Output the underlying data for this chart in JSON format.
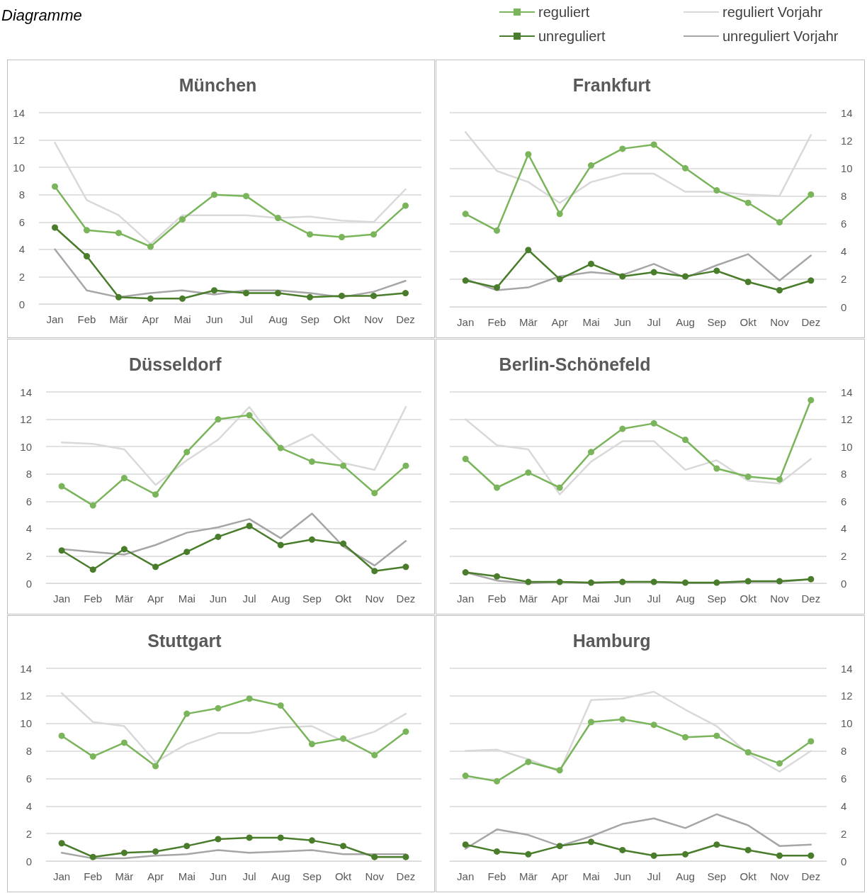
{
  "chart_data": [
    {
      "type": "line",
      "title": "München",
      "annotations": [
        "Diagramme"
      ],
      "categories": [
        "Jan",
        "Feb",
        "Mär",
        "Apr",
        "Mai",
        "Jun",
        "Jul",
        "Aug",
        "Sep",
        "Okt",
        "Nov",
        "Dez"
      ],
      "ylim": [
        0,
        14
      ],
      "yticks": [
        0,
        2,
        4,
        6,
        8,
        10,
        12,
        14
      ],
      "grid": "y",
      "legend": "top right",
      "series": [
        {
          "name": "reguliert Vorjahr",
          "color": "#d9d9d9",
          "marker": "none",
          "values": [
            11.8,
            7.6,
            6.5,
            4.4,
            6.5,
            6.5,
            6.5,
            6.3,
            6.4,
            6.1,
            6.0,
            8.4
          ]
        },
        {
          "name": "unreguliert Vorjahr",
          "color": "#a6a6a6",
          "marker": "none",
          "values": [
            4.0,
            1.0,
            0.5,
            0.8,
            1.0,
            0.7,
            1.0,
            1.0,
            0.8,
            0.5,
            0.9,
            1.7
          ]
        },
        {
          "name": "reguliert",
          "color": "#7ab55c",
          "marker": "circle",
          "values": [
            8.6,
            5.4,
            5.2,
            4.2,
            6.2,
            8.0,
            7.9,
            6.3,
            5.1,
            4.9,
            5.1,
            7.2
          ]
        },
        {
          "name": "unreguliert",
          "color": "#4a7d2b",
          "marker": "circle",
          "values": [
            5.6,
            3.5,
            0.5,
            0.4,
            0.4,
            1.0,
            0.8,
            0.8,
            0.5,
            0.6,
            0.6,
            0.8
          ]
        }
      ]
    },
    {
      "type": "line",
      "title": "Frankfurt",
      "categories": [
        "Jan",
        "Feb",
        "Mär",
        "Apr",
        "Mai",
        "Jun",
        "Jul",
        "Aug",
        "Sep",
        "Okt",
        "Nov",
        "Dez"
      ],
      "ylim": [
        0,
        14
      ],
      "yticks": [
        0,
        2,
        4,
        6,
        8,
        10,
        12,
        14
      ],
      "grid": "y",
      "series": [
        {
          "color": "#d9d9d9",
          "marker": "none",
          "values": [
            12.6,
            9.8,
            9.0,
            7.5,
            9.0,
            9.6,
            9.6,
            8.3,
            8.3,
            8.1,
            8.0,
            12.4
          ]
        },
        {
          "color": "#a6a6a6",
          "marker": "none",
          "values": [
            2.0,
            1.2,
            1.4,
            2.2,
            2.5,
            2.3,
            3.1,
            2.1,
            3.0,
            3.8,
            1.9,
            3.7
          ]
        },
        {
          "color": "#7ab55c",
          "marker": "circle",
          "values": [
            6.7,
            5.5,
            11.0,
            6.7,
            10.2,
            11.4,
            11.7,
            10.0,
            8.4,
            7.5,
            6.1,
            8.1
          ]
        },
        {
          "color": "#4a7d2b",
          "marker": "circle",
          "values": [
            1.9,
            1.4,
            4.1,
            2.0,
            3.1,
            2.2,
            2.5,
            2.2,
            2.6,
            1.8,
            1.2,
            1.9
          ]
        }
      ]
    },
    {
      "type": "line",
      "title": "Düsseldorf",
      "categories": [
        "Jan",
        "Feb",
        "Mär",
        "Apr",
        "Mai",
        "Jun",
        "Jul",
        "Aug",
        "Sep",
        "Okt",
        "Nov",
        "Dez"
      ],
      "ylim": [
        0,
        14
      ],
      "yticks": [
        0,
        2,
        4,
        6,
        8,
        10,
        12,
        14
      ],
      "grid": "y",
      "series": [
        {
          "color": "#d9d9d9",
          "marker": "none",
          "values": [
            10.3,
            10.2,
            9.8,
            7.2,
            9.0,
            10.5,
            12.9,
            9.8,
            10.9,
            8.8,
            8.3,
            12.9
          ]
        },
        {
          "color": "#a6a6a6",
          "marker": "none",
          "values": [
            2.5,
            2.3,
            2.1,
            2.8,
            3.7,
            4.1,
            4.7,
            3.3,
            5.1,
            2.7,
            1.3,
            3.1
          ]
        },
        {
          "color": "#7ab55c",
          "marker": "circle",
          "values": [
            7.1,
            5.7,
            7.7,
            6.5,
            9.6,
            12.0,
            12.3,
            9.9,
            8.9,
            8.6,
            6.6,
            8.6
          ]
        },
        {
          "color": "#4a7d2b",
          "marker": "circle",
          "values": [
            2.4,
            1.0,
            2.5,
            1.2,
            2.3,
            3.4,
            4.2,
            2.8,
            3.2,
            2.9,
            0.9,
            1.2
          ]
        }
      ]
    },
    {
      "type": "line",
      "title": "Berlin-Schönefeld",
      "categories": [
        "Jan",
        "Feb",
        "Mär",
        "Apr",
        "Mai",
        "Jun",
        "Jul",
        "Aug",
        "Sep",
        "Okt",
        "Nov",
        "Dez"
      ],
      "ylim": [
        0,
        14
      ],
      "yticks": [
        0,
        2,
        4,
        6,
        8,
        10,
        12,
        14
      ],
      "grid": "y",
      "series": [
        {
          "color": "#d9d9d9",
          "marker": "none",
          "values": [
            12.0,
            10.1,
            9.8,
            6.5,
            8.9,
            10.4,
            10.4,
            8.3,
            9.0,
            7.5,
            7.3,
            9.1
          ]
        },
        {
          "color": "#a6a6a6",
          "marker": "none",
          "values": [
            0.8,
            0.2,
            0.0,
            0.1,
            0.0,
            0.1,
            0.1,
            0.0,
            0.0,
            0.1,
            0.1,
            0.3
          ]
        },
        {
          "color": "#7ab55c",
          "marker": "circle",
          "values": [
            9.1,
            7.0,
            8.1,
            7.0,
            9.6,
            11.3,
            11.7,
            10.5,
            8.4,
            7.8,
            7.6,
            13.4
          ]
        },
        {
          "color": "#4a7d2b",
          "marker": "circle",
          "values": [
            0.8,
            0.5,
            0.1,
            0.1,
            0.05,
            0.1,
            0.1,
            0.05,
            0.05,
            0.15,
            0.15,
            0.3
          ]
        }
      ]
    },
    {
      "type": "line",
      "title": "Stuttgart",
      "categories": [
        "Jan",
        "Feb",
        "Mär",
        "Apr",
        "Mai",
        "Jun",
        "Jul",
        "Aug",
        "Sep",
        "Okt",
        "Nov",
        "Dez"
      ],
      "ylim": [
        0,
        14
      ],
      "yticks": [
        0,
        2,
        4,
        6,
        8,
        10,
        12,
        14
      ],
      "grid": "y",
      "series": [
        {
          "color": "#d9d9d9",
          "marker": "none",
          "values": [
            12.2,
            10.1,
            9.8,
            7.2,
            8.5,
            9.3,
            9.3,
            9.7,
            9.8,
            8.7,
            9.4,
            10.7
          ]
        },
        {
          "color": "#a6a6a6",
          "marker": "none",
          "values": [
            0.6,
            0.2,
            0.2,
            0.4,
            0.5,
            0.8,
            0.6,
            0.7,
            0.8,
            0.5,
            0.5,
            0.5
          ]
        },
        {
          "color": "#7ab55c",
          "marker": "circle",
          "values": [
            9.1,
            7.6,
            8.6,
            6.9,
            10.7,
            11.1,
            11.8,
            11.3,
            8.5,
            8.9,
            7.7,
            9.4
          ]
        },
        {
          "color": "#4a7d2b",
          "marker": "circle",
          "values": [
            1.3,
            0.3,
            0.6,
            0.7,
            1.1,
            1.6,
            1.7,
            1.7,
            1.5,
            1.1,
            0.3,
            0.3
          ]
        }
      ]
    },
    {
      "type": "line",
      "title": "Hamburg",
      "categories": [
        "Jan",
        "Feb",
        "Mär",
        "Apr",
        "Mai",
        "Jun",
        "Jul",
        "Aug",
        "Sep",
        "Okt",
        "Nov",
        "Dez"
      ],
      "ylim": [
        0,
        14
      ],
      "yticks": [
        0,
        2,
        4,
        6,
        8,
        10,
        12,
        14
      ],
      "grid": "y",
      "series": [
        {
          "color": "#d9d9d9",
          "marker": "none",
          "values": [
            8.0,
            8.1,
            7.4,
            6.5,
            11.7,
            11.8,
            12.3,
            11.0,
            9.8,
            7.8,
            6.5,
            8.0
          ]
        },
        {
          "color": "#a6a6a6",
          "marker": "none",
          "values": [
            0.9,
            2.3,
            1.9,
            1.1,
            1.8,
            2.7,
            3.1,
            2.4,
            3.4,
            2.6,
            1.1,
            1.2
          ]
        },
        {
          "color": "#7ab55c",
          "marker": "circle",
          "values": [
            6.2,
            5.8,
            7.2,
            6.6,
            10.1,
            10.3,
            9.9,
            9.0,
            9.1,
            7.9,
            7.1,
            8.7
          ]
        },
        {
          "color": "#4a7d2b",
          "marker": "circle",
          "values": [
            1.2,
            0.7,
            0.5,
            1.1,
            1.4,
            0.8,
            0.4,
            0.5,
            1.2,
            0.8,
            0.4,
            0.4
          ]
        }
      ]
    }
  ]
}
